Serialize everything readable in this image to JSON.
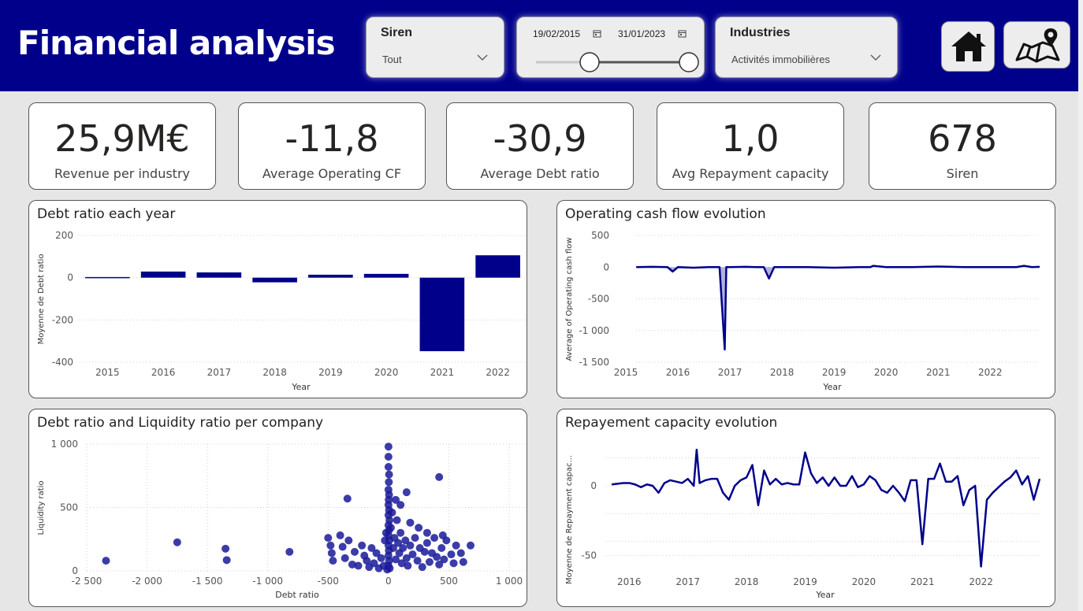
{
  "header": {
    "title": "Financial analysis",
    "background": "#00008b"
  },
  "filters": {
    "siren": {
      "title": "Siren",
      "value": "Tout"
    },
    "date": {
      "start": "19/02/2015",
      "end": "31/01/2023"
    },
    "industries": {
      "title": "Industries",
      "value": "Activités immobilières"
    }
  },
  "nav": {
    "home_icon": "home-icon",
    "map_icon": "map-icon"
  },
  "kpis": [
    {
      "value": "25,9M€",
      "label": "Revenue per industry"
    },
    {
      "value": "-11,8",
      "label": "Average Operating CF"
    },
    {
      "value": "-30,9",
      "label": "Average Debt ratio"
    },
    {
      "value": "1,0",
      "label": "Avg Repayment capacity"
    },
    {
      "value": "678",
      "label": "Siren"
    }
  ],
  "colors": {
    "accent": "#00008b",
    "point": "#1a1a9a"
  },
  "charts": {
    "debt": {
      "title": "Debt ratio each year",
      "xlabel": "Year",
      "ylabel": "Moyenne de Debt ratio"
    },
    "opcf": {
      "title": "Operating cash flow evolution",
      "xlabel": "Year",
      "ylabel": "Average of Operating cash flow"
    },
    "scatter": {
      "title": "Debt ratio and Liquidity ratio per company",
      "xlabel": "Debt ratio",
      "ylabel": "Liquidity ratio"
    },
    "repay": {
      "title": "Repayement capacity evolution",
      "xlabel": "Year",
      "ylabel": "Moyenne de Repayment capac..."
    }
  },
  "chart_data": [
    {
      "type": "bar",
      "title": "Debt ratio each year",
      "xlabel": "Year",
      "ylabel": "Moyenne de Debt ratio",
      "categories": [
        "2015",
        "2016",
        "2017",
        "2018",
        "2019",
        "2020",
        "2021",
        "2022"
      ],
      "values": [
        3,
        29,
        25,
        -22,
        14,
        18,
        -348,
        106
      ],
      "ylim": [
        -400,
        200
      ],
      "yticks": [
        200,
        0,
        -200,
        -400
      ],
      "ytick_labels": [
        "200",
        "0",
        "-200",
        "-400"
      ],
      "grid": true
    },
    {
      "type": "area",
      "title": "Operating cash flow evolution",
      "xlabel": "Year",
      "ylabel": "Average of Operating cash flow",
      "x": [
        2015.2,
        2015.5,
        2015.8,
        2015.9,
        2016.0,
        2016.3,
        2016.6,
        2016.8,
        2016.9,
        2016.93,
        2017.0,
        2017.3,
        2017.5,
        2017.65,
        2017.75,
        2017.85,
        2018.0,
        2018.5,
        2019.0,
        2019.5,
        2019.7,
        2019.75,
        2020.0,
        2020.5,
        2021.0,
        2021.5,
        2022.0,
        2022.5,
        2022.65,
        2022.8,
        2022.95
      ],
      "values": [
        0,
        5,
        0,
        -70,
        0,
        -10,
        0,
        0,
        -1300,
        0,
        0,
        5,
        0,
        0,
        -180,
        0,
        0,
        0,
        -10,
        0,
        0,
        20,
        0,
        0,
        10,
        0,
        0,
        0,
        20,
        0,
        5
      ],
      "ylim": [
        -1500,
        500
      ],
      "yticks": [
        500,
        0,
        -500,
        -1000,
        -1500
      ],
      "ytick_labels": [
        "500",
        "0",
        "-500",
        "-1 000",
        "-1 500"
      ],
      "xticks": [
        2015,
        2016,
        2017,
        2018,
        2019,
        2020,
        2021,
        2022
      ],
      "grid": true
    },
    {
      "type": "scatter",
      "title": "Debt ratio and Liquidity ratio per company",
      "xlabel": "Debt ratio",
      "ylabel": "Liquidity ratio",
      "xlim": [
        -2500,
        1000
      ],
      "ylim": [
        0,
        1000
      ],
      "xticks": [
        -2500,
        -2000,
        -1500,
        -1000,
        -500,
        0,
        500,
        1000
      ],
      "xtick_labels": [
        "-2 500",
        "-2 000",
        "-1 500",
        "-1 000",
        "-500",
        "0",
        "500",
        "1 000"
      ],
      "yticks": [
        1000,
        500,
        0
      ],
      "ytick_labels": [
        "1 000",
        "500",
        "0"
      ],
      "points": [
        [
          -2340,
          80
        ],
        [
          -1750,
          225
        ],
        [
          -1350,
          175
        ],
        [
          -1340,
          85
        ],
        [
          -820,
          150
        ],
        [
          -340,
          570
        ],
        [
          420,
          740
        ],
        [
          -500,
          260
        ],
        [
          -480,
          200
        ],
        [
          -470,
          140
        ],
        [
          -460,
          80
        ],
        [
          -400,
          280
        ],
        [
          -380,
          190
        ],
        [
          -360,
          100
        ],
        [
          -330,
          240
        ],
        [
          -300,
          50
        ],
        [
          -280,
          150
        ],
        [
          -250,
          40
        ],
        [
          -220,
          200
        ],
        [
          -200,
          120
        ],
        [
          -180,
          80
        ],
        [
          -160,
          30
        ],
        [
          -140,
          180
        ],
        [
          -120,
          60
        ],
        [
          -100,
          140
        ],
        [
          -80,
          20
        ],
        [
          -60,
          100
        ],
        [
          -40,
          40
        ],
        [
          -30,
          240
        ],
        [
          -20,
          300
        ],
        [
          -10,
          10
        ],
        [
          0,
          980
        ],
        [
          0,
          900
        ],
        [
          0,
          820
        ],
        [
          5,
          760
        ],
        [
          3,
          700
        ],
        [
          0,
          640
        ],
        [
          5,
          600
        ],
        [
          2,
          560
        ],
        [
          0,
          520
        ],
        [
          5,
          480
        ],
        [
          0,
          440
        ],
        [
          8,
          400
        ],
        [
          0,
          360
        ],
        [
          4,
          320
        ],
        [
          0,
          280
        ],
        [
          6,
          240
        ],
        [
          0,
          200
        ],
        [
          3,
          160
        ],
        [
          0,
          120
        ],
        [
          5,
          80
        ],
        [
          0,
          40
        ],
        [
          10,
          20
        ],
        [
          20,
          340
        ],
        [
          30,
          460
        ],
        [
          40,
          180
        ],
        [
          50,
          260
        ],
        [
          60,
          90
        ],
        [
          70,
          400
        ],
        [
          80,
          220
        ],
        [
          90,
          140
        ],
        [
          100,
          300
        ],
        [
          110,
          60
        ],
        [
          120,
          180
        ],
        [
          140,
          240
        ],
        [
          150,
          100
        ],
        [
          160,
          40
        ],
        [
          180,
          200
        ],
        [
          200,
          130
        ],
        [
          220,
          260
        ],
        [
          240,
          80
        ],
        [
          260,
          180
        ],
        [
          280,
          30
        ],
        [
          300,
          150
        ],
        [
          320,
          220
        ],
        [
          340,
          70
        ],
        [
          360,
          140
        ],
        [
          380,
          260
        ],
        [
          400,
          110
        ],
        [
          420,
          50
        ],
        [
          440,
          180
        ],
        [
          460,
          90
        ],
        [
          480,
          240
        ],
        [
          520,
          130
        ],
        [
          540,
          60
        ],
        [
          560,
          200
        ],
        [
          600,
          140
        ],
        [
          620,
          70
        ],
        [
          680,
          200
        ],
        [
          150,
          620
        ],
        [
          100,
          520
        ],
        [
          60,
          560
        ],
        [
          180,
          380
        ],
        [
          250,
          340
        ],
        [
          320,
          300
        ],
        [
          450,
          280
        ]
      ],
      "grid": true
    },
    {
      "type": "line",
      "title": "Repayement capacity evolution",
      "xlabel": "Year",
      "ylabel": "Moyenne de Repayment capac...",
      "x": [
        2015.7,
        2015.9,
        2016.0,
        2016.1,
        2016.2,
        2016.3,
        2016.4,
        2016.5,
        2016.6,
        2016.7,
        2016.8,
        2016.9,
        2017.0,
        2017.1,
        2017.15,
        2017.2,
        2017.3,
        2017.4,
        2017.5,
        2017.6,
        2017.7,
        2017.8,
        2017.9,
        2018.0,
        2018.1,
        2018.2,
        2018.3,
        2018.4,
        2018.5,
        2018.6,
        2018.7,
        2018.8,
        2018.9,
        2019.0,
        2019.1,
        2019.2,
        2019.3,
        2019.4,
        2019.5,
        2019.6,
        2019.7,
        2019.8,
        2019.9,
        2020.0,
        2020.1,
        2020.2,
        2020.3,
        2020.4,
        2020.5,
        2020.6,
        2020.7,
        2020.8,
        2020.9,
        2021.0,
        2021.1,
        2021.2,
        2021.3,
        2021.4,
        2021.5,
        2021.6,
        2021.7,
        2021.8,
        2021.9,
        2022.0,
        2022.1,
        2022.2,
        2022.3,
        2022.4,
        2022.5,
        2022.6,
        2022.7,
        2022.8,
        2022.9,
        2023.0
      ],
      "values": [
        1,
        2,
        2,
        1,
        -1,
        1,
        0,
        -5,
        2,
        4,
        3,
        2,
        5,
        0,
        26,
        2,
        4,
        5,
        5,
        -5,
        -10,
        0,
        4,
        6,
        15,
        -14,
        11,
        1,
        5,
        1,
        2,
        1,
        1,
        24,
        9,
        2,
        6,
        0,
        6,
        0,
        0,
        7,
        -1,
        1,
        7,
        4,
        -3,
        -5,
        0,
        -5,
        -11,
        4,
        4,
        -42,
        5,
        5,
        16,
        3,
        3,
        7,
        -14,
        -3,
        0,
        -58,
        -10,
        -5,
        -1,
        3,
        6,
        11,
        1,
        7,
        -10,
        5
      ],
      "ylim": [
        -60,
        30
      ],
      "yticks": [
        0,
        -50
      ],
      "ytick_labels": [
        "0",
        "-50"
      ],
      "xticks": [
        2016,
        2017,
        2018,
        2019,
        2020,
        2021,
        2022
      ],
      "grid": true
    }
  ]
}
